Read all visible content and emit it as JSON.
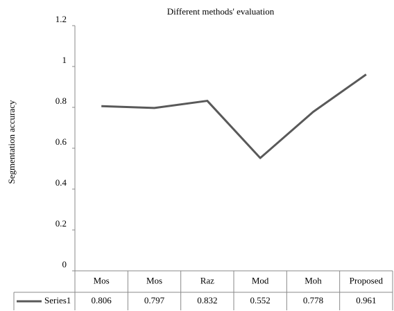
{
  "chart_data": {
    "type": "line",
    "title": "Different methods' evaluation",
    "y_label": "Segmentation accuracy",
    "categories": [
      "Mos",
      "Mos",
      "Raz",
      "Mod",
      "Moh",
      "Proposed"
    ],
    "series": [
      {
        "name": "Series1",
        "color": "#595959",
        "values": [
          0.806,
          0.797,
          0.832,
          0.552,
          0.778,
          0.961
        ]
      }
    ],
    "ylim": [
      0,
      1.2
    ],
    "yticks": [
      0,
      0.2,
      0.4,
      0.6,
      0.8,
      1,
      1.2
    ],
    "grid": false,
    "legend": "data-table"
  }
}
